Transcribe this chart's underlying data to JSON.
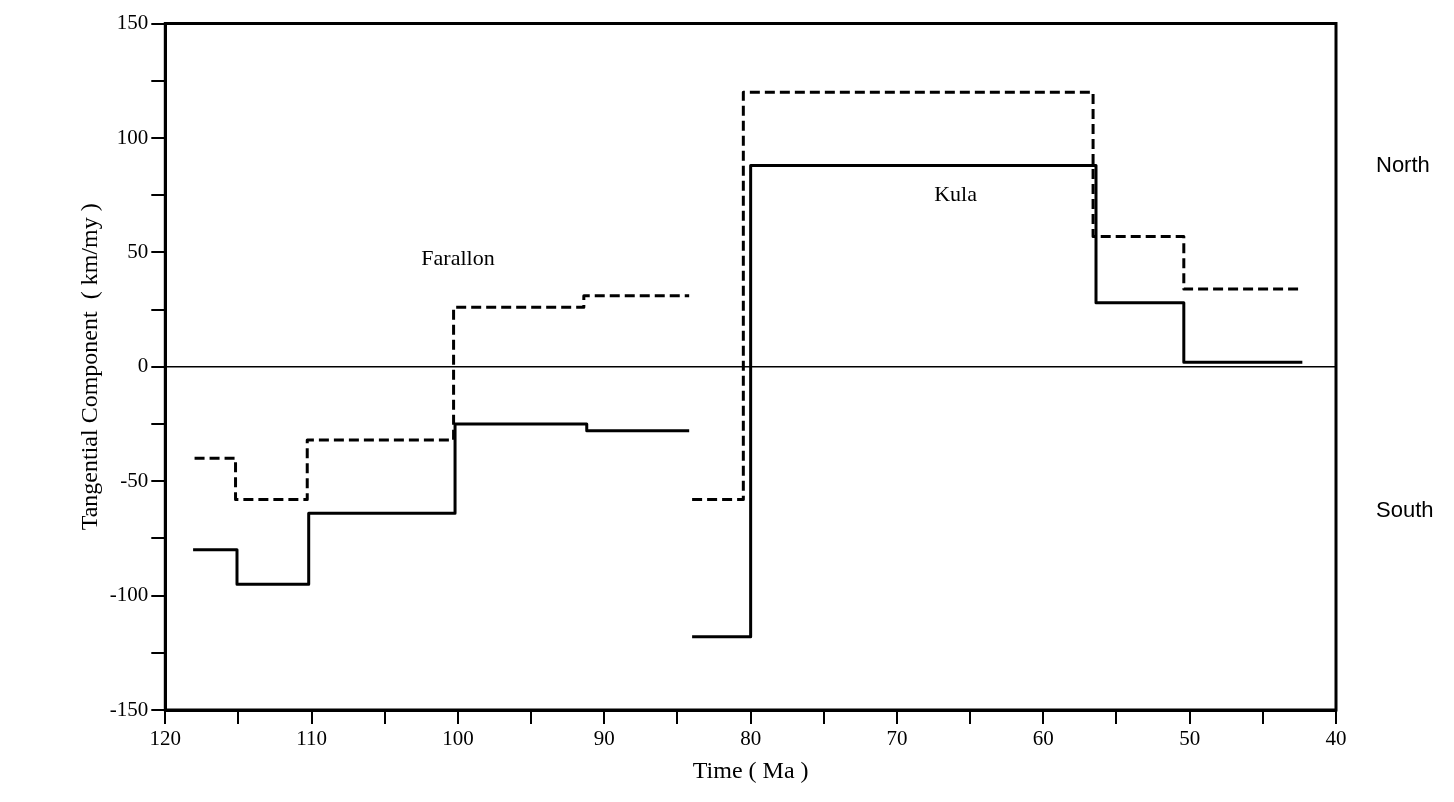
{
  "chart_data": {
    "type": "step",
    "xlabel": "Time ( Ma )",
    "ylabel": "Tangential Component  ( km/my )",
    "xlim": [
      120,
      40
    ],
    "ylim": [
      -150,
      150
    ],
    "xticks": [
      120,
      {
        "value": 115,
        "label": null
      },
      110,
      {
        "value": 105,
        "label": null
      },
      100,
      {
        "value": 95,
        "label": null
      },
      90,
      {
        "value": 85,
        "label": null
      },
      80,
      {
        "value": 75,
        "label": null
      },
      70,
      {
        "value": 65,
        "label": null
      },
      60,
      {
        "value": 55,
        "label": null
      },
      50,
      {
        "value": 45,
        "label": null
      },
      40
    ],
    "yticks": [
      -150,
      {
        "value": -125,
        "label": null
      },
      -100,
      {
        "value": -75,
        "label": null
      },
      -50,
      {
        "value": -25,
        "label": null
      },
      0,
      {
        "value": 25,
        "label": null
      },
      50,
      {
        "value": 75,
        "label": null
      },
      100,
      {
        "value": 125,
        "label": null
      },
      150
    ],
    "grid": false,
    "legend": false,
    "marker": "none",
    "series": [
      {
        "color": "#000000",
        "line_style": "solid",
        "x": [
          118.1,
          115.1,
          110.2,
          100.2,
          91.2,
          84.2,
          84.1,
          84,
          80,
          56.4,
          50.4,
          42.3
        ],
        "values": [
          -80,
          -95,
          -64,
          -25,
          -28,
          -28,
          null,
          -118,
          88,
          28,
          2,
          2
        ]
      },
      {
        "color": "#000000",
        "line_style": "dashed",
        "x": [
          118,
          115.2,
          110.3,
          100.3,
          91.4,
          84.2,
          84.1,
          84,
          80.5,
          56.6,
          50.4,
          42.5
        ],
        "values": [
          -40,
          -58,
          -32,
          26,
          31,
          31,
          null,
          -58,
          120,
          57,
          34,
          34
        ]
      }
    ],
    "ref_lines": [
      {
        "axis": "y",
        "value": 0,
        "color": "#000000",
        "line_style": "solid"
      }
    ],
    "annotations": [
      "Farallon",
      "Kula",
      "North",
      "South"
    ]
  }
}
